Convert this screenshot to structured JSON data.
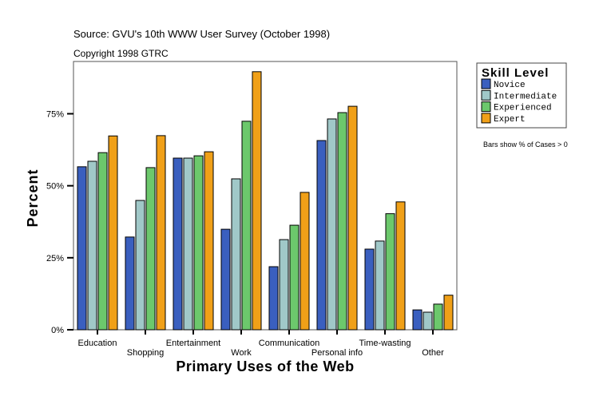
{
  "chart_data": {
    "type": "bar",
    "source_line": "Source: GVU's 10th WWW User Survey (October 1998)",
    "copyright_line": "Copyright 1998 GTRC",
    "xlabel": "Primary Uses of the Web",
    "ylabel": "Percent",
    "ylim": [
      0,
      93
    ],
    "yticks": [
      0,
      25,
      50,
      75
    ],
    "ytick_labels": [
      "0%",
      "25%",
      "50%",
      "75%"
    ],
    "grid": false,
    "legend_title": "Skill Level",
    "legend_position": "top-right",
    "note": "Bars show % of Cases > 0",
    "categories": [
      "Education",
      "Shopping",
      "Entertainment",
      "Work",
      "Communication",
      "Personal info",
      "Time-wasting",
      "Other"
    ],
    "series": [
      {
        "name": "Novice",
        "color": "#3a5fbf",
        "values": [
          56.6,
          32.2,
          59.6,
          34.9,
          21.9,
          65.7,
          28.0,
          6.9
        ]
      },
      {
        "name": "Intermediate",
        "color": "#a0c8c8",
        "values": [
          58.5,
          44.9,
          59.6,
          52.4,
          31.3,
          73.2,
          30.8,
          6.1
        ]
      },
      {
        "name": "Experienced",
        "color": "#6cc86c",
        "values": [
          61.5,
          56.3,
          60.4,
          72.4,
          36.3,
          75.4,
          40.3,
          8.9
        ]
      },
      {
        "name": "Expert",
        "color": "#f0a018",
        "values": [
          67.3,
          67.4,
          61.8,
          89.6,
          47.7,
          77.6,
          44.4,
          12.0
        ]
      }
    ]
  }
}
